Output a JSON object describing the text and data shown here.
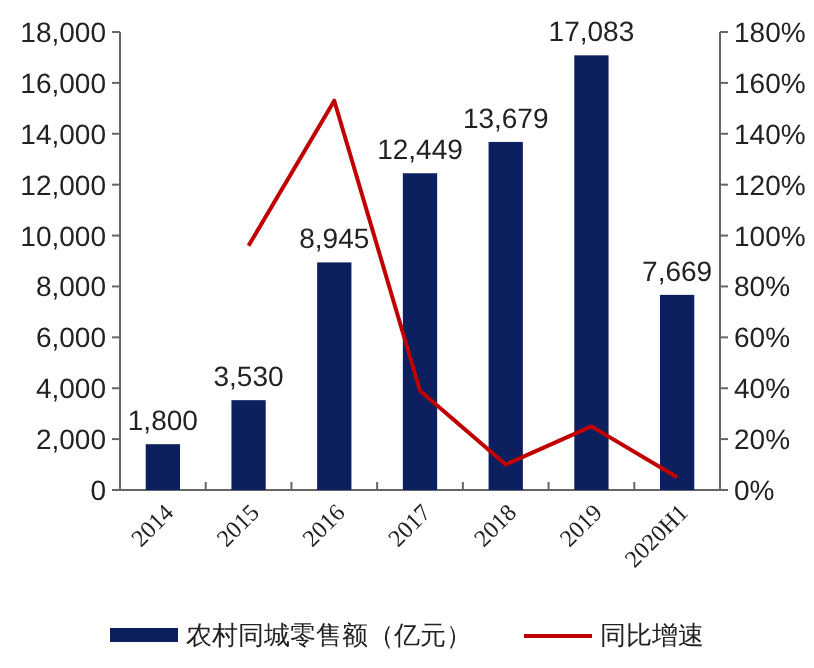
{
  "chart_data": {
    "type": "bar",
    "categories": [
      "2014",
      "2015",
      "2016",
      "2017",
      "2018",
      "2019",
      "2020H1"
    ],
    "series": [
      {
        "name": "农村同城零售额（亿元）",
        "color": "#0c1f5e",
        "values": [
          1800,
          3530,
          8945,
          12449,
          13679,
          17083,
          7669
        ],
        "value_labels": [
          "1,800",
          "3,530",
          "8,945",
          "12,449",
          "13,679",
          "17,083",
          "7,669"
        ]
      },
      {
        "name": "同比增速",
        "type": "line",
        "axis": "y2",
        "color": "#c00000",
        "values": [
          null,
          96,
          153,
          39,
          10,
          25,
          5
        ]
      }
    ],
    "ylim": [
      0,
      18000
    ],
    "yticks": [
      0,
      {
        "value": 2000,
        "label": "2,000"
      },
      {
        "value": 4000,
        "label": "4,000"
      },
      {
        "value": 6000,
        "label": "6,000"
      },
      {
        "value": 8000,
        "label": "8,000"
      },
      {
        "value": 10000,
        "label": "10,000"
      },
      {
        "value": 12000,
        "label": "12,000"
      },
      {
        "value": 14000,
        "label": "14,000"
      },
      {
        "value": 16000,
        "label": "16,000"
      },
      {
        "value": 18000,
        "label": "18,000"
      }
    ],
    "y2lim": [
      0,
      180
    ],
    "y2ticks": [
      {
        "value": 0,
        "label": "0%"
      },
      {
        "value": 20,
        "label": "20%"
      },
      {
        "value": 40,
        "label": "40%"
      },
      {
        "value": 60,
        "label": "60%"
      },
      {
        "value": 80,
        "label": "80%"
      },
      {
        "value": 100,
        "label": "100%"
      },
      {
        "value": 120,
        "label": "120%"
      },
      {
        "value": 140,
        "label": "140%"
      },
      {
        "value": 160,
        "label": "160%"
      },
      {
        "value": 180,
        "label": "180%"
      }
    ],
    "legend": "bottom",
    "grid": false
  }
}
